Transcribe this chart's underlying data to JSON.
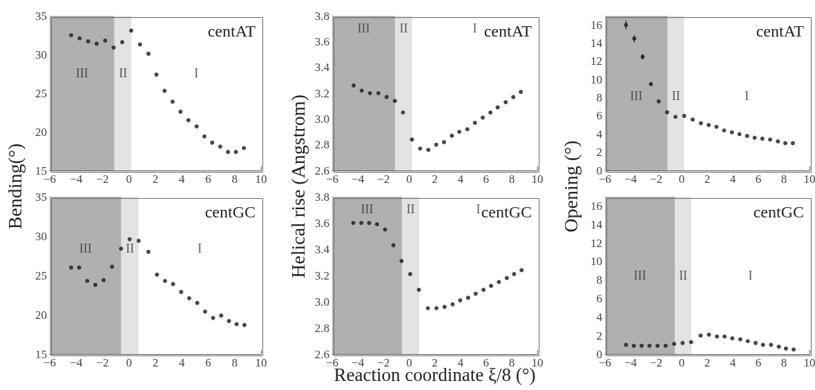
{
  "chart_data": [
    {
      "type": "scatter",
      "ylabel": "Bending(°)",
      "annotations": [
        "centAT"
      ],
      "marker": "circle",
      "grid": false,
      "color": "#1a1a1a",
      "xlim": [
        -6,
        10
      ],
      "xticks": [
        -6,
        -4,
        -2,
        0,
        2,
        4,
        6,
        8,
        10
      ],
      "ylim": [
        15,
        35
      ],
      "yticks": [
        15,
        20,
        25,
        30,
        35
      ],
      "bands": [
        {
          "axis": "x",
          "from": -6,
          "to": -1.1,
          "label": "III",
          "color": "#b0b0b0"
        },
        {
          "axis": "x",
          "from": -1.1,
          "to": 0.2,
          "label": "II",
          "color": "#e3e3e3"
        },
        {
          "axis": "x",
          "from": 0.2,
          "to": 10,
          "label": "I",
          "color": "#ffffff"
        }
      ],
      "x": [
        -4.38,
        -3.74,
        -3.09,
        -2.45,
        -1.8,
        -1.16,
        -0.51,
        0.17,
        0.83,
        1.47,
        2.08,
        2.69,
        3.3,
        3.9,
        4.5,
        5.12,
        5.71,
        6.3,
        6.91,
        7.5,
        8.09,
        8.7
      ],
      "values": [
        32.5,
        32.1,
        31.7,
        31.4,
        31.8,
        30.9,
        31.6,
        33.1,
        31.3,
        30.1,
        27.4,
        25.3,
        23.9,
        22.6,
        21.5,
        20.7,
        19.4,
        18.6,
        18.1,
        17.4,
        17.4,
        17.9
      ]
    },
    {
      "type": "scatter",
      "ylabel": "Helical rise (Angstrom)",
      "annotations": [
        "centAT"
      ],
      "marker": "circle",
      "grid": false,
      "color": "#1a1a1a",
      "xlim": [
        -6,
        10
      ],
      "xticks": [
        -6,
        -4,
        -2,
        0,
        2,
        4,
        6,
        8,
        10
      ],
      "ylim": [
        2.6,
        3.8
      ],
      "yticks": [
        {
          "value": 2.6,
          "label": "2.6"
        },
        {
          "value": 2.8,
          "label": "2.8"
        },
        {
          "value": 3.0,
          "label": "3.0"
        },
        {
          "value": 3.2,
          "label": "3.2"
        },
        {
          "value": 3.4,
          "label": "3.4"
        },
        {
          "value": 3.6,
          "label": "3.6"
        },
        {
          "value": 3.8,
          "label": "3.8"
        }
      ],
      "bands": [
        {
          "axis": "x",
          "from": -6,
          "to": -1.1,
          "label": "III",
          "color": "#b0b0b0"
        },
        {
          "axis": "x",
          "from": -1.1,
          "to": 0.24,
          "label": "II",
          "color": "#e3e3e3"
        },
        {
          "axis": "x",
          "from": 0.24,
          "to": 10,
          "label": "I",
          "color": "#ffffff"
        }
      ],
      "x": [
        -4.33,
        -3.7,
        -3.05,
        -2.4,
        -1.76,
        -1.11,
        -0.48,
        0.22,
        0.86,
        1.5,
        2.11,
        2.72,
        3.33,
        3.91,
        4.54,
        5.13,
        5.74,
        6.34,
        6.91,
        7.53,
        8.12,
        8.71
      ],
      "values": [
        3.26,
        3.22,
        3.2,
        3.2,
        3.17,
        3.14,
        3.05,
        2.84,
        2.77,
        2.76,
        2.8,
        2.82,
        2.87,
        2.9,
        2.92,
        2.97,
        3.01,
        3.05,
        3.09,
        3.13,
        3.17,
        3.21
      ]
    },
    {
      "type": "scatter",
      "ylabel": "Opening (°)",
      "annotations": [
        "centAT"
      ],
      "marker": "circle",
      "grid": false,
      "color": "#1a1a1a",
      "xlim": [
        -6,
        10
      ],
      "xticks": [
        -6,
        -4,
        -2,
        0,
        2,
        4,
        6,
        8,
        10
      ],
      "ylim": [
        0,
        17
      ],
      "yticks": [
        0,
        2,
        4,
        6,
        8,
        10,
        12,
        14,
        16
      ],
      "bands": [
        {
          "axis": "x",
          "from": -6,
          "to": -1.1,
          "label": "III",
          "color": "#b0b0b0"
        },
        {
          "axis": "x",
          "from": -1.1,
          "to": 0.2,
          "label": "II",
          "color": "#e3e3e3"
        },
        {
          "axis": "x",
          "from": 0.2,
          "to": 10,
          "label": "I",
          "color": "#ffffff"
        }
      ],
      "x": [
        -4.36,
        -3.71,
        -3.06,
        -2.41,
        -1.8,
        -1.14,
        -0.49,
        0.2,
        0.86,
        1.5,
        2.11,
        2.72,
        3.32,
        3.93,
        4.52,
        5.12,
        5.71,
        6.31,
        6.92,
        7.53,
        8.11,
        8.7
      ],
      "values": [
        16.0,
        14.5,
        12.5,
        9.5,
        7.6,
        6.4,
        5.9,
        6.0,
        5.6,
        5.2,
        5.0,
        4.8,
        4.4,
        4.2,
        4.0,
        3.8,
        3.6,
        3.5,
        3.4,
        3.2,
        3.0,
        3.0
      ],
      "errors": [
        0.5,
        0.4,
        0.3,
        0.2,
        null,
        null,
        null,
        null,
        null,
        null,
        null,
        null,
        null,
        null,
        null,
        null,
        null,
        null,
        null,
        null,
        null,
        null
      ]
    },
    {
      "type": "scatter",
      "annotations": [
        "centGC"
      ],
      "marker": "circle",
      "grid": false,
      "color": "#1a1a1a",
      "xlim": [
        -6,
        10
      ],
      "xticks": [
        -6,
        -4,
        -2,
        0,
        2,
        4,
        6,
        8,
        10
      ],
      "ylim": [
        15,
        35
      ],
      "yticks": [
        15,
        20,
        25,
        30,
        35
      ],
      "bands": [
        {
          "axis": "x",
          "from": -6,
          "to": -0.58,
          "label": "III",
          "color": "#b0b0b0"
        },
        {
          "axis": "x",
          "from": -0.58,
          "to": 0.73,
          "label": "II",
          "color": "#e3e3e3"
        },
        {
          "axis": "x",
          "from": 0.73,
          "to": 10,
          "label": "I",
          "color": "#ffffff"
        }
      ],
      "x": [
        -4.38,
        -3.77,
        -3.16,
        -2.55,
        -1.92,
        -1.28,
        -0.6,
        0.05,
        0.73,
        1.47,
        2.12,
        2.73,
        3.34,
        3.95,
        4.56,
        5.17,
        5.76,
        6.37,
        6.98,
        7.57,
        8.15,
        8.74
      ],
      "values": [
        26.0,
        26.0,
        24.3,
        23.8,
        24.4,
        26.1,
        28.4,
        29.6,
        29.4,
        28.0,
        25.1,
        24.3,
        23.9,
        22.9,
        22.1,
        21.5,
        20.4,
        19.6,
        19.9,
        19.2,
        18.8,
        18.7
      ]
    },
    {
      "type": "scatter",
      "xlabel": "Reaction coordinate ξ/8  (°)",
      "annotations": [
        "centGC"
      ],
      "marker": "circle",
      "grid": false,
      "color": "#1a1a1a",
      "xlim": [
        -6,
        10
      ],
      "xticks": [
        -6,
        -4,
        -2,
        0,
        2,
        4,
        6,
        8,
        10
      ],
      "ylim": [
        2.6,
        3.8
      ],
      "yticks": [
        {
          "value": 2.6,
          "label": "2.6"
        },
        {
          "value": 2.8,
          "label": "2.8"
        },
        {
          "value": 3.0,
          "label": "3.0"
        },
        {
          "value": 3.2,
          "label": "3.2"
        },
        {
          "value": 3.4,
          "label": "3.4"
        },
        {
          "value": 3.6,
          "label": "3.6"
        },
        {
          "value": 3.8,
          "label": "3.8"
        }
      ],
      "bands": [
        {
          "axis": "x",
          "from": -6,
          "to": -0.55,
          "label": "III",
          "color": "#b0b0b0"
        },
        {
          "axis": "x",
          "from": -0.55,
          "to": 0.78,
          "label": "II",
          "color": "#e3e3e3"
        },
        {
          "axis": "x",
          "from": 0.78,
          "to": 10,
          "label": "I",
          "color": "#ffffff"
        }
      ],
      "x": [
        -4.35,
        -3.73,
        -3.12,
        -2.5,
        -1.88,
        -1.23,
        -0.59,
        0.08,
        0.76,
        1.46,
        2.13,
        2.76,
        3.39,
        3.98,
        4.6,
        5.19,
        5.8,
        6.39,
        7.0,
        7.62,
        8.19,
        8.77
      ],
      "values": [
        3.6,
        3.6,
        3.6,
        3.59,
        3.55,
        3.43,
        3.31,
        3.21,
        3.09,
        2.95,
        2.95,
        2.96,
        2.98,
        3.01,
        3.03,
        3.06,
        3.09,
        3.12,
        3.15,
        3.18,
        3.21,
        3.24
      ]
    },
    {
      "type": "scatter",
      "annotations": [
        "centGC"
      ],
      "marker": "circle",
      "grid": false,
      "color": "#1a1a1a",
      "xlim": [
        -6,
        10
      ],
      "xticks": [
        -6,
        -4,
        -2,
        0,
        2,
        4,
        6,
        8,
        10
      ],
      "ylim": [
        0,
        17
      ],
      "yticks": [
        0,
        2,
        4,
        6,
        8,
        10,
        12,
        14,
        16
      ],
      "bands": [
        {
          "axis": "x",
          "from": -6,
          "to": -0.54,
          "label": "III",
          "color": "#b0b0b0"
        },
        {
          "axis": "x",
          "from": -0.54,
          "to": 0.77,
          "label": "II",
          "color": "#e3e3e3"
        },
        {
          "axis": "x",
          "from": 0.77,
          "to": 10,
          "label": "I",
          "color": "#ffffff"
        }
      ],
      "x": [
        -4.36,
        -3.75,
        -3.14,
        -2.52,
        -1.89,
        -1.26,
        -0.59,
        0.07,
        0.74,
        1.48,
        2.13,
        2.76,
        3.35,
        3.96,
        4.59,
        5.17,
        5.78,
        6.36,
        6.99,
        7.6,
        8.16,
        8.76
      ],
      "values": [
        1.0,
        0.9,
        0.9,
        0.9,
        0.9,
        0.9,
        1.1,
        1.2,
        1.3,
        2.0,
        2.1,
        1.9,
        1.9,
        1.7,
        1.6,
        1.4,
        1.2,
        1.0,
        1.0,
        0.8,
        0.6,
        0.5
      ]
    }
  ]
}
